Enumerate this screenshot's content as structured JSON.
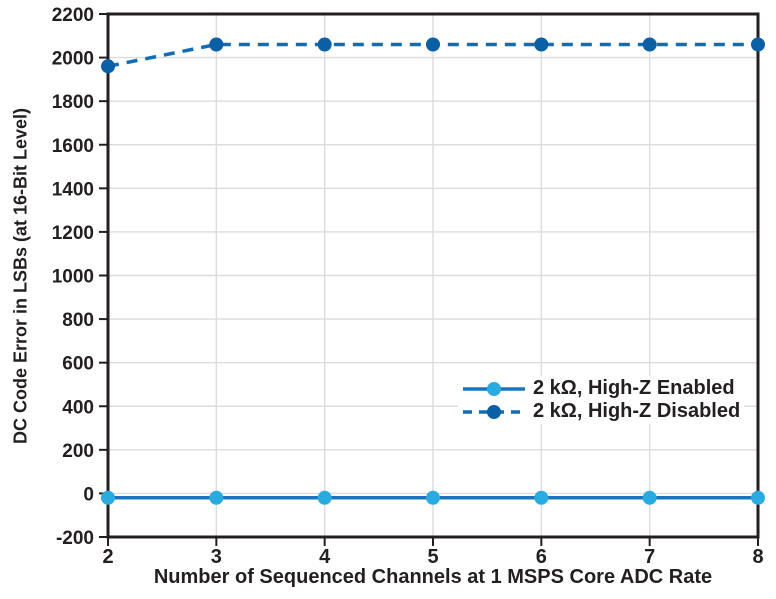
{
  "chart_data": {
    "type": "line",
    "x": [
      2,
      3,
      4,
      5,
      6,
      7,
      8
    ],
    "series": [
      {
        "name": "2 kΩ, High-Z Enabled",
        "values": [
          -20,
          -20,
          -20,
          -20,
          -20,
          -20,
          -20
        ],
        "line_style": "solid",
        "line_color": "#1B75BC",
        "marker_color": "#29ABE2"
      },
      {
        "name": "2 kΩ, High-Z Disabled",
        "values": [
          1960,
          2060,
          2060,
          2060,
          2060,
          2060,
          2060
        ],
        "line_style": "dashed",
        "line_color": "#0F6CB5",
        "marker_color": "#0B5FA5"
      }
    ],
    "xlabel": "Number of Sequenced Channels at 1 MSPS Core ADC Rate",
    "ylabel": "DC Code Error in LSBs (at 16-Bit Level)",
    "xlim": [
      2,
      8
    ],
    "ylim": [
      -200,
      2200
    ],
    "x_ticks": [
      2,
      3,
      4,
      5,
      6,
      7,
      8
    ],
    "y_ticks": [
      -200,
      0,
      200,
      400,
      600,
      800,
      1000,
      1200,
      1400,
      1600,
      1800,
      2000,
      2200
    ],
    "grid": true,
    "legend_position": "inside-right-center"
  },
  "colors": {
    "background": "#FFFFFF",
    "frame": "#231F20",
    "grid": "#DCDCDC",
    "text": "#231F20"
  }
}
